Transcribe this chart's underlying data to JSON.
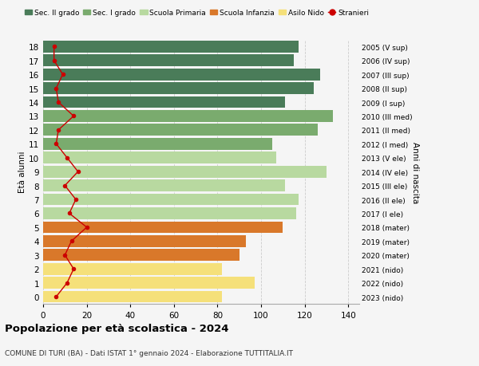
{
  "ages": [
    18,
    17,
    16,
    15,
    14,
    13,
    12,
    11,
    10,
    9,
    8,
    7,
    6,
    5,
    4,
    3,
    2,
    1,
    0
  ],
  "right_labels": [
    "2005 (V sup)",
    "2006 (IV sup)",
    "2007 (III sup)",
    "2008 (II sup)",
    "2009 (I sup)",
    "2010 (III med)",
    "2011 (II med)",
    "2012 (I med)",
    "2013 (V ele)",
    "2014 (IV ele)",
    "2015 (III ele)",
    "2016 (II ele)",
    "2017 (I ele)",
    "2018 (mater)",
    "2019 (mater)",
    "2020 (mater)",
    "2021 (nido)",
    "2022 (nido)",
    "2023 (nido)"
  ],
  "bar_values": [
    117,
    115,
    127,
    124,
    111,
    133,
    126,
    105,
    107,
    130,
    111,
    117,
    116,
    110,
    93,
    90,
    82,
    97,
    82
  ],
  "stranieri": [
    5,
    5,
    9,
    6,
    7,
    14,
    7,
    6,
    11,
    16,
    10,
    15,
    12,
    20,
    13,
    10,
    14,
    11,
    6
  ],
  "bar_colors": [
    "#4a7c59",
    "#4a7c59",
    "#4a7c59",
    "#4a7c59",
    "#4a7c59",
    "#7aab6e",
    "#7aab6e",
    "#7aab6e",
    "#b8d9a0",
    "#b8d9a0",
    "#b8d9a0",
    "#b8d9a0",
    "#b8d9a0",
    "#d9782a",
    "#d9782a",
    "#d9782a",
    "#f5e07a",
    "#f5e07a",
    "#f5e07a"
  ],
  "legend_labels": [
    "Sec. II grado",
    "Sec. I grado",
    "Scuola Primaria",
    "Scuola Infanzia",
    "Asilo Nido",
    "Stranieri"
  ],
  "legend_colors": [
    "#4a7c59",
    "#7aab6e",
    "#b8d9a0",
    "#d9782a",
    "#f5e07a",
    "#cc0000"
  ],
  "title": "Popolazione per età scolastica - 2024",
  "subtitle": "COMUNE DI TURI (BA) - Dati ISTAT 1° gennaio 2024 - Elaborazione TUTTITALIA.IT",
  "ylabel": "Età alunni",
  "right_ylabel": "Anni di nascita",
  "xlim": [
    0,
    145
  ],
  "xticks": [
    0,
    20,
    40,
    60,
    80,
    100,
    120,
    140
  ],
  "bg_color": "#f5f5f5",
  "stranieri_color": "#cc0000",
  "bar_height": 0.85,
  "grid_color": "#cccccc"
}
